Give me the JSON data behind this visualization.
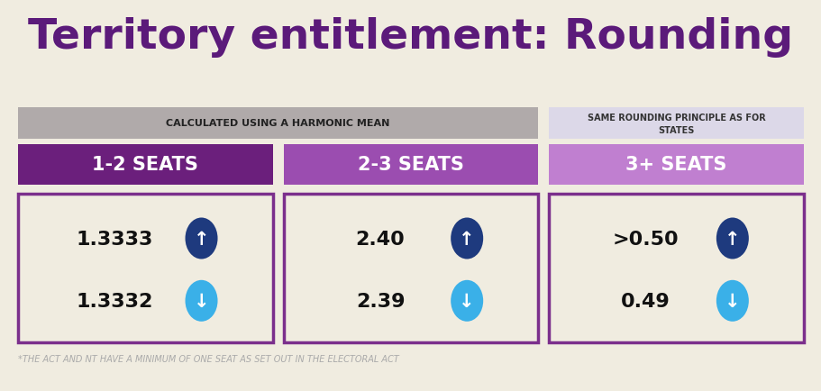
{
  "title": "Territory entitlement: Rounding",
  "title_color": "#5b1a7a",
  "title_fontsize": 34,
  "background_color": "#f0ece0",
  "subtitle_left": "CALCULATED USING A HARMONIC MEAN",
  "subtitle_left_bg": "#b0aaaa",
  "subtitle_right": "SAME ROUNDING PRINCIPLE AS FOR\nSTATES",
  "subtitle_right_bg": "#dcd8e8",
  "columns": [
    {
      "label": "1-2 SEATS",
      "color": "#6b1f7c",
      "values": [
        "1.3333",
        "1.3332"
      ],
      "arrow_up_color": "#1e3a7e",
      "arrow_down_color": "#3ab0e8"
    },
    {
      "label": "2-3 SEATS",
      "color": "#9b4db0",
      "values": [
        "2.40",
        "2.39"
      ],
      "arrow_up_color": "#1e3a7e",
      "arrow_down_color": "#3ab0e8"
    },
    {
      "label": "3+ SEATS",
      "color": "#c07fd0",
      "values": [
        ">0.50",
        "0.49"
      ],
      "arrow_up_color": "#1e3a7e",
      "arrow_down_color": "#3ab0e8"
    }
  ],
  "box_border_color": "#7b2f8c",
  "footnote": "*THE ACT AND NT HAVE A MINIMUM OF ONE SEAT AS SET OUT IN THE ELECTORAL ACT",
  "footnote_color": "#aaaaaa",
  "footnote_fontsize": 7
}
